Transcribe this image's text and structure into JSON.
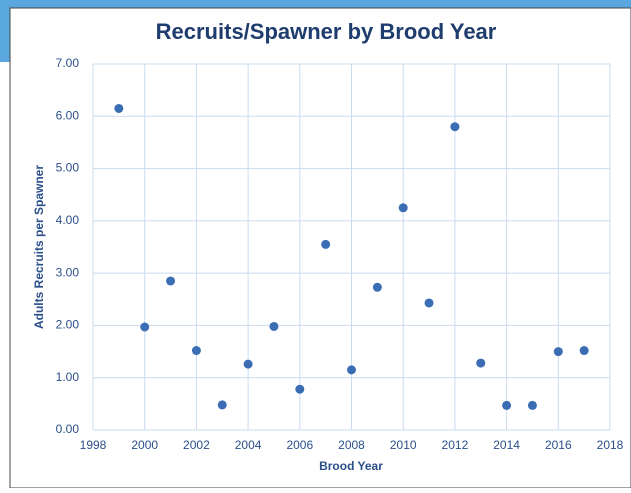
{
  "chart_data": {
    "type": "scatter",
    "title": "Recruits/Spawner by Brood Year",
    "x_label": "Brood Year",
    "y_label": "Adults Recruits per Spawner",
    "x": [
      1999,
      2000,
      2001,
      2002,
      2003,
      2004,
      2005,
      2006,
      2007,
      2008,
      2009,
      2010,
      2011,
      2012,
      2013,
      2014,
      2015,
      2016,
      2017
    ],
    "values": [
      6.15,
      1.97,
      2.85,
      1.52,
      0.48,
      1.26,
      1.98,
      0.78,
      3.55,
      1.15,
      2.73,
      4.25,
      2.43,
      5.8,
      1.28,
      0.47,
      0.47,
      1.5,
      1.52
    ],
    "color": "#3a6db3",
    "xlim": [
      1998,
      2018
    ],
    "xticks": [
      1998,
      2000,
      2002,
      2004,
      2006,
      2008,
      2010,
      2012,
      2014,
      2016,
      2018
    ],
    "ylim": [
      0,
      7
    ],
    "yticks": [
      {
        "value": 0,
        "label": "0.00"
      },
      {
        "value": 1,
        "label": "1.00"
      },
      {
        "value": 2,
        "label": "2.00"
      },
      {
        "value": 3,
        "label": "3.00"
      },
      {
        "value": 4,
        "label": "4.00"
      },
      {
        "value": 5,
        "label": "5.00"
      },
      {
        "value": 6,
        "label": "6.00"
      },
      {
        "value": 7,
        "label": "7.00"
      }
    ],
    "grid": true
  }
}
